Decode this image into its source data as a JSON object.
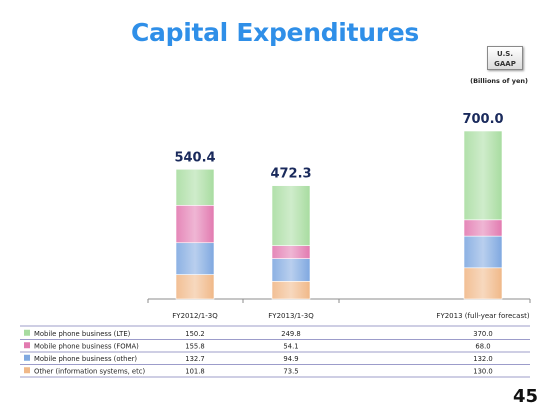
{
  "slide": {
    "title": "Capital Expenditures",
    "badge": "U.S.\nGAAP",
    "unit_note": "(Billions of yen)",
    "page_number": "45"
  },
  "chart_data": {
    "type": "bar",
    "stacked": true,
    "categories": [
      "FY2012/1-3Q",
      "FY2013/1-3Q",
      "FY2013 (full-year forecast)"
    ],
    "totals": [
      "540.4",
      "472.3",
      "700.0"
    ],
    "series": [
      {
        "name": "Mobile phone business (LTE)",
        "values": [
          150.2,
          249.8,
          370.0
        ],
        "labels": [
          "150.2",
          "249.8",
          "370.0"
        ],
        "color": "#a8dca0"
      },
      {
        "name": "Mobile phone business (FOMA)",
        "values": [
          155.8,
          54.1,
          68.0
        ],
        "labels": [
          "155.8",
          "54.1",
          "68.0"
        ],
        "color": "#e27ab0"
      },
      {
        "name": "Mobile phone business (other)",
        "values": [
          132.7,
          94.9,
          132.0
        ],
        "labels": [
          "132.7",
          "94.9",
          "132.0"
        ],
        "color": "#7fa8e0"
      },
      {
        "name": "Other (information systems, etc)",
        "values": [
          101.8,
          73.5,
          130.0
        ],
        "labels": [
          "101.8",
          "73.5",
          "130.0"
        ],
        "color": "#f0b888"
      }
    ],
    "ylim": [
      0,
      700
    ],
    "grid": false,
    "legend": "table-below"
  }
}
